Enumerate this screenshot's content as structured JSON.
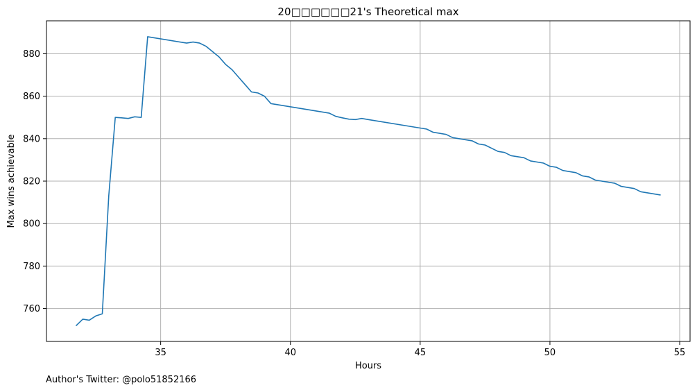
{
  "footnote": "Author's Twitter: @polo51852166",
  "chart_data": {
    "type": "line",
    "title": "20□□□□□□21's Theoretical max",
    "xlabel": "Hours",
    "ylabel": "Max wins achievable",
    "xlim": [
      30.6,
      55.4
    ],
    "ylim": [
      744.5,
      895.5
    ],
    "xticks": [
      35,
      40,
      45,
      50,
      55
    ],
    "yticks": [
      760,
      780,
      800,
      820,
      840,
      860,
      880
    ],
    "grid": true,
    "series": [
      {
        "color": "#1f77b4",
        "x": [
          31.75,
          32.0,
          32.25,
          32.5,
          32.75,
          33.0,
          33.25,
          33.5,
          33.75,
          34.0,
          34.25,
          34.5,
          36.0,
          36.25,
          36.5,
          36.75,
          37.0,
          37.25,
          37.5,
          37.75,
          38.0,
          38.25,
          38.5,
          38.75,
          39.0,
          39.25,
          41.5,
          41.75,
          42.0,
          42.25,
          42.5,
          42.75,
          43.0,
          45.0,
          45.25,
          45.5,
          46.0,
          46.25,
          47.0,
          47.25,
          47.5,
          48.0,
          48.25,
          48.5,
          49.0,
          49.25,
          49.75,
          50.0,
          50.25,
          50.5,
          51.0,
          51.25,
          51.5,
          51.75,
          52.5,
          52.75,
          53.25,
          53.5,
          54.25
        ],
        "y": [
          752,
          755,
          754.5,
          756.5,
          757.5,
          813,
          850,
          849.8,
          849.5,
          850.3,
          850,
          888,
          885,
          885.5,
          885,
          883.5,
          881,
          878.5,
          875,
          872.5,
          869,
          865.5,
          862,
          861.5,
          860,
          856.5,
          852,
          850.5,
          849.8,
          849.2,
          849,
          849.5,
          849,
          845,
          844.5,
          843,
          842,
          840.5,
          839,
          837.5,
          837,
          834,
          833.5,
          832,
          831,
          829.5,
          828.5,
          827,
          826.5,
          825,
          824,
          822.5,
          822,
          820.5,
          819,
          817.5,
          816.5,
          815,
          813.5
        ]
      }
    ]
  }
}
